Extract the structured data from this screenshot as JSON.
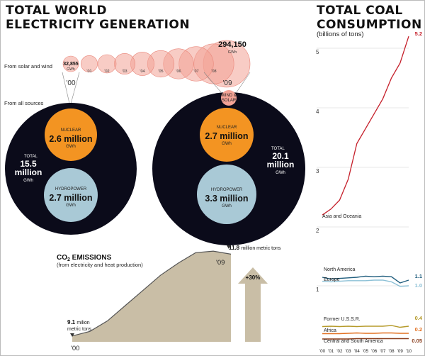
{
  "left_title": [
    "TOTAL WORLD",
    "ELECTRICITY GENERATION"
  ],
  "right_title": [
    "TOTAL COAL",
    "CONSUMPTION"
  ],
  "right_subtitle": "(billions of tons)",
  "colors": {
    "solar_bubble": "#f3a396",
    "solar_bubble_stroke": "#e9867a",
    "nuclear": "#f39422",
    "hydro": "#a9c9d6",
    "total": "#0b0b1a",
    "co2_fill": "#c9bea6",
    "asia": "#c51f2a",
    "north_america": "#1f5d7d",
    "europe": "#8cc0d6",
    "ussr": "#b59a2a",
    "africa": "#e27020",
    "south_america": "#8a3d1c"
  },
  "chart_data": [
    {
      "type": "bubble",
      "title": "From solar and wind",
      "categories": [
        "'00",
        "'01",
        "'02",
        "'03",
        "'04",
        "'05",
        "'06",
        "'07",
        "'08",
        "'09"
      ],
      "values": [
        32855,
        37000,
        46000,
        58000,
        74000,
        95000,
        123000,
        160000,
        215000,
        294150
      ],
      "value_labels": [
        "32,855",
        "",
        "",
        "",
        "",
        "",
        "",
        "",
        "",
        "294,150"
      ],
      "unit": "GWh",
      "year_labels": [
        "'00",
        "'01",
        "'02",
        "'03",
        "'04",
        "'05",
        "'06",
        "'07",
        "'08",
        "'09"
      ],
      "end_labels": [
        "'00",
        "'09"
      ]
    },
    {
      "type": "nested-circles",
      "section_label": "From all sources",
      "panels": [
        {
          "year": "'00",
          "total_label": "TOTAL",
          "total_value": "15.5",
          "total_unit": "million",
          "total_gwh": "GWh",
          "nuclear_label": "NUCLEAR",
          "nuclear_value": "2.6 million",
          "nuclear_gwh": "GWh",
          "hydro_label": "HYDROPOWER",
          "hydro_value": "2.7 million",
          "hydro_gwh": "GWh",
          "total": 15.5,
          "nuclear": 2.6,
          "hydro": 2.7
        },
        {
          "year": "'09",
          "total_label": "TOTAL",
          "total_value": "20.1",
          "total_unit": "million",
          "total_gwh": "GWh",
          "nuclear_label": "NUCLEAR",
          "nuclear_value": "2.7 million",
          "nuclear_gwh": "GWh",
          "hydro_label": "HYDROPOWER",
          "hydro_value": "3.3 million",
          "hydro_gwh": "GWh",
          "ws_label_1": "WIND &",
          "ws_label_2": "SOLAR",
          "total": 20.1,
          "nuclear": 2.7,
          "hydro": 3.3,
          "wind_solar": 0.294
        }
      ]
    },
    {
      "type": "area",
      "title": "CO2 EMISSIONS",
      "subtitle": "(from electricity and heat production)",
      "x": [
        2000,
        2001,
        2002,
        2003,
        2004,
        2005,
        2006,
        2007,
        2008,
        2009
      ],
      "values": [
        9.1,
        9.25,
        9.6,
        10.1,
        10.6,
        11.1,
        11.5,
        11.85,
        11.9,
        11.8
      ],
      "start_value_label": "9.1",
      "start_label_rest": "milion",
      "start_label_unit": "metric tons",
      "end_value_label": "11.8",
      "end_label_rest": "million metric tons",
      "x_start_label": "'00",
      "x_end_label": "'09",
      "change_label": "+30%"
    },
    {
      "type": "line",
      "title": "Total coal consumption (billions of tons)",
      "x_tick_labels": [
        "'00",
        "'01",
        "'02",
        "'03",
        "'04",
        "'05",
        "'06",
        "'07",
        "'08",
        "'09",
        "'10"
      ],
      "y_tick_labels": [
        "5",
        "4",
        "3",
        "2",
        "1"
      ],
      "ylim": [
        0,
        5.2
      ],
      "series": [
        {
          "name": "Asia and Oceania",
          "color": "#c51f2a",
          "values": [
            2.2,
            2.3,
            2.45,
            2.8,
            3.4,
            3.65,
            3.9,
            4.15,
            4.5,
            4.75,
            5.2
          ],
          "end_label": "5.2"
        },
        {
          "name": "North America",
          "color": "#1f5d7d",
          "values": [
            1.15,
            1.12,
            1.13,
            1.14,
            1.15,
            1.17,
            1.16,
            1.17,
            1.16,
            1.05,
            1.1
          ],
          "end_label": "1.1"
        },
        {
          "name": "Europe",
          "color": "#8cc0d6",
          "values": [
            1.08,
            1.07,
            1.08,
            1.09,
            1.09,
            1.09,
            1.1,
            1.1,
            1.07,
            0.99,
            1.0
          ],
          "end_label": "1.0"
        },
        {
          "name": "Former U.S.S.R.",
          "color": "#b59a2a",
          "values": [
            0.39,
            0.4,
            0.39,
            0.4,
            0.39,
            0.4,
            0.4,
            0.4,
            0.42,
            0.37,
            0.4
          ],
          "end_label": "0.4"
        },
        {
          "name": "Africa",
          "color": "#e27020",
          "values": [
            0.19,
            0.19,
            0.19,
            0.2,
            0.21,
            0.2,
            0.2,
            0.21,
            0.21,
            0.2,
            0.2
          ],
          "end_label": "0.2"
        },
        {
          "name": "Central and South America",
          "color": "#8a3d1c",
          "values": [
            0.04,
            0.04,
            0.04,
            0.04,
            0.05,
            0.05,
            0.05,
            0.05,
            0.05,
            0.05,
            0.05
          ],
          "end_label": "0.05"
        }
      ]
    }
  ]
}
